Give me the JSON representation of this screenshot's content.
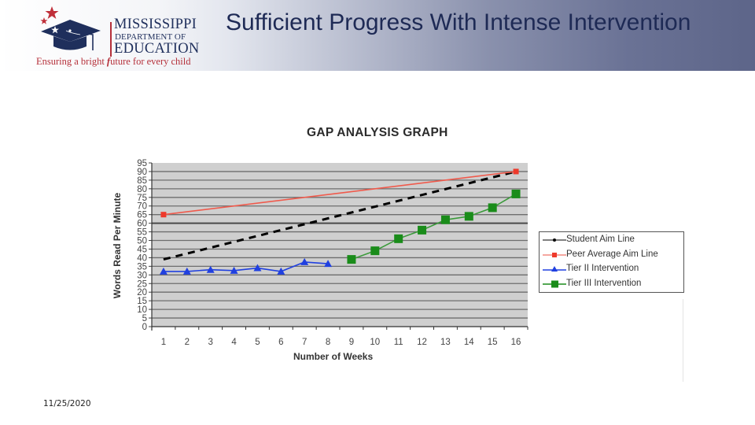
{
  "header": {
    "logo": {
      "line1": "MISSISSIPPI",
      "line2": "DEPARTMENT OF",
      "line3": "EDUCATION",
      "tagline_pre": "Ensuring a bright ",
      "tagline_em": "f",
      "tagline_post": "uture for every child"
    },
    "title": "Sufficient Progress With Intense Intervention"
  },
  "footer": {
    "date": "11/25/2020"
  },
  "colors": {
    "title": "#1e2a55",
    "student_aim": "#000000",
    "peer_aim": "#ee3a2c",
    "tier2": "#2040e0",
    "tier3": "#1a8c1a",
    "plot_bg": "#cfcfcf"
  },
  "chart_data": {
    "type": "line",
    "title": "GAP ANALYSIS GRAPH",
    "xlabel": "Number of Weeks",
    "ylabel": "Words Read Per Minute",
    "x": [
      1,
      2,
      3,
      4,
      5,
      6,
      7,
      8,
      9,
      10,
      11,
      12,
      13,
      14,
      15,
      16
    ],
    "ylim": [
      0,
      95
    ],
    "yticks": [
      0,
      5,
      10,
      15,
      20,
      25,
      30,
      35,
      40,
      45,
      50,
      55,
      60,
      65,
      70,
      75,
      80,
      85,
      90,
      95
    ],
    "grid": true,
    "legend_position": "right",
    "series": [
      {
        "name": "Student Aim Line",
        "style": "dashed",
        "marker": "dot",
        "color": "#000000",
        "points": [
          [
            1,
            39
          ],
          [
            16,
            90
          ]
        ]
      },
      {
        "name": "Peer Average Aim Line",
        "style": "solid",
        "marker": "square",
        "color": "#ee3a2c",
        "points": [
          [
            1,
            65
          ],
          [
            16,
            90
          ]
        ]
      },
      {
        "name": "Tier II Intervention",
        "style": "solid",
        "marker": "triangle",
        "color": "#2040e0",
        "points": [
          [
            1,
            32
          ],
          [
            2,
            32
          ],
          [
            3,
            33
          ],
          [
            4,
            32.5
          ],
          [
            5,
            34
          ],
          [
            6,
            32
          ],
          [
            7,
            37.5
          ],
          [
            8,
            36.5
          ]
        ]
      },
      {
        "name": "Tier III Intervention",
        "style": "solid",
        "marker": "square",
        "color": "#1a8c1a",
        "points": [
          [
            9,
            39
          ],
          [
            10,
            44
          ],
          [
            11,
            51
          ],
          [
            12,
            56
          ],
          [
            13,
            62
          ],
          [
            14,
            64
          ],
          [
            15,
            69
          ],
          [
            16,
            77
          ]
        ]
      }
    ]
  }
}
